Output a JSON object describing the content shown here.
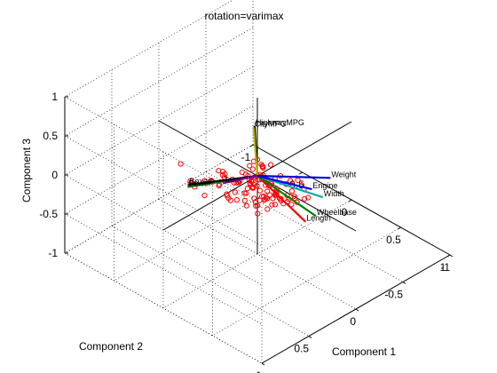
{
  "chart_data": {
    "type": "scatter",
    "title": "rotation=varimax",
    "xlabel": "Component 1",
    "ylabel": "Component 2",
    "zlabel": "Component 3",
    "xlim": [
      -1,
      1
    ],
    "ylim": [
      -1,
      1
    ],
    "zlim": [
      -1,
      1
    ],
    "xticks": [
      "-1",
      "-0.5",
      "0",
      "0.5",
      "1"
    ],
    "yticks": [
      "-1",
      "-0.5",
      "0",
      "0.5",
      "1"
    ],
    "zticks": [
      "-1",
      "-0.5",
      "0",
      "0.5",
      "1"
    ],
    "grid": true,
    "axis_lines_color": "#000000",
    "vectors": [
      {
        "label": "HighwayMPG",
        "coords": [
          0.0,
          0.03,
          0.66
        ],
        "color": "#000000"
      },
      {
        "label": "CityMPG",
        "coords": [
          -0.02,
          0.02,
          0.62
        ],
        "color": "#b5b500"
      },
      {
        "label": "Power",
        "coords": [
          -0.26,
          0.47,
          0.0
        ],
        "color": "#008000"
      },
      {
        "label": "Boxed",
        "coords": [
          -0.26,
          0.46,
          0.02
        ],
        "color": "#000000"
      },
      {
        "label": "Tons",
        "coords": [
          -0.14,
          0.22,
          -0.04
        ],
        "color": "#8000a0"
      },
      {
        "label": "Length",
        "coords": [
          0.68,
          0.2,
          0.03
        ],
        "color": "#ff0000"
      },
      {
        "label": "Wheelbase",
        "coords": [
          0.66,
          0.07,
          0.0
        ],
        "color": "#008000"
      },
      {
        "label": "Width",
        "coords": [
          0.55,
          -0.12,
          0.03
        ],
        "color": "#00aaaa"
      },
      {
        "label": "Engine",
        "coords": [
          0.4,
          -0.16,
          -0.0
        ],
        "color": "#0000ff"
      },
      {
        "label": "Weight",
        "coords": [
          0.36,
          -0.4,
          -0.05
        ],
        "color": "#0000cc"
      }
    ],
    "point_color": "#ff0000",
    "points": [
      [
        -0.32,
        0.48,
        0.26
      ],
      [
        -0.3,
        0.4,
        0.0
      ],
      [
        -0.28,
        0.42,
        -0.02
      ],
      [
        -0.3,
        0.34,
        -0.08
      ],
      [
        -0.35,
        0.3,
        -0.18
      ],
      [
        -0.25,
        0.3,
        -0.22
      ],
      [
        -0.2,
        0.35,
        0.04
      ],
      [
        -0.18,
        0.3,
        0.02
      ],
      [
        -0.22,
        0.25,
        -0.06
      ],
      [
        -0.28,
        0.2,
        -0.12
      ],
      [
        -0.12,
        0.2,
        -0.18
      ],
      [
        -0.1,
        0.18,
        -0.26
      ],
      [
        -0.16,
        0.14,
        -0.3
      ],
      [
        -0.08,
        0.05,
        -0.34
      ],
      [
        0.0,
        0.0,
        -0.38
      ],
      [
        0.04,
        -0.04,
        -0.3
      ],
      [
        -0.05,
        -0.08,
        -0.28
      ],
      [
        0.06,
        0.06,
        -0.4
      ],
      [
        0.1,
        0.0,
        -0.22
      ],
      [
        0.12,
        0.1,
        -0.16
      ],
      [
        0.14,
        -0.06,
        -0.14
      ],
      [
        0.2,
        0.02,
        -0.08
      ],
      [
        0.22,
        0.1,
        -0.02
      ],
      [
        0.25,
        0.06,
        0.0
      ],
      [
        0.3,
        0.12,
        0.04
      ],
      [
        0.35,
        0.05,
        0.03
      ],
      [
        0.18,
        -0.12,
        -0.06
      ],
      [
        0.22,
        -0.2,
        -0.04
      ],
      [
        0.28,
        -0.08,
        0.02
      ],
      [
        0.32,
        -0.16,
        -0.06
      ],
      [
        0.08,
        0.16,
        0.06
      ],
      [
        0.02,
        0.22,
        0.08
      ],
      [
        -0.04,
        0.12,
        0.1
      ],
      [
        0.0,
        0.05,
        0.12
      ],
      [
        0.05,
        0.0,
        0.16
      ],
      [
        -0.02,
        -0.02,
        0.18
      ],
      [
        0.1,
        0.05,
        0.06
      ],
      [
        0.06,
        0.1,
        0.0
      ],
      [
        -0.06,
        0.06,
        0.02
      ],
      [
        0.0,
        0.0,
        0.0
      ],
      [
        0.02,
        0.02,
        -0.02
      ],
      [
        -0.03,
        0.0,
        -0.04
      ],
      [
        0.04,
        -0.02,
        0.02
      ],
      [
        -0.02,
        0.04,
        -0.06
      ],
      [
        0.08,
        -0.02,
        -0.04
      ],
      [
        0.03,
        0.08,
        -0.08
      ],
      [
        -0.08,
        0.0,
        -0.1
      ],
      [
        0.12,
        0.02,
        -0.1
      ],
      [
        0.06,
        -0.08,
        -0.1
      ],
      [
        -0.04,
        -0.06,
        -0.12
      ],
      [
        0.1,
        0.14,
        -0.12
      ],
      [
        0.0,
        0.12,
        -0.14
      ],
      [
        -0.1,
        0.1,
        -0.08
      ],
      [
        0.14,
        0.06,
        0.02
      ],
      [
        0.16,
        -0.02,
        0.06
      ],
      [
        0.08,
        0.04,
        0.08
      ],
      [
        -0.02,
        0.08,
        0.04
      ],
      [
        0.04,
        0.12,
        0.02
      ],
      [
        0.02,
        -0.1,
        -0.18
      ],
      [
        0.08,
        -0.12,
        -0.2
      ],
      [
        -0.06,
        -0.02,
        -0.2
      ],
      [
        0.1,
        -0.06,
        -0.26
      ],
      [
        0.18,
        0.14,
        -0.04
      ],
      [
        0.24,
        0.16,
        0.0
      ],
      [
        0.2,
        -0.04,
        -0.18
      ],
      [
        0.26,
        0.02,
        -0.12
      ],
      [
        -0.14,
        0.04,
        -0.14
      ],
      [
        -0.1,
        -0.04,
        -0.16
      ],
      [
        -0.14,
        0.12,
        -0.06
      ],
      [
        -0.06,
        0.16,
        -0.02
      ],
      [
        0.12,
        0.18,
        0.06
      ],
      [
        0.06,
        0.2,
        -0.04
      ],
      [
        0.16,
        0.1,
        -0.08
      ],
      [
        0.2,
        0.06,
        0.08
      ],
      [
        0.3,
        -0.02,
        -0.1
      ],
      [
        0.34,
        0.08,
        -0.06
      ],
      [
        0.38,
        0.0,
        -0.02
      ],
      [
        0.26,
        -0.12,
        -0.16
      ],
      [
        0.0,
        -0.06,
        0.06
      ],
      [
        0.04,
        -0.1,
        0.1
      ],
      [
        -0.04,
        -0.1,
        0.02
      ],
      [
        0.12,
        -0.12,
        0.0
      ],
      [
        0.06,
        0.02,
        0.2
      ],
      [
        0.1,
        0.08,
        0.14
      ],
      [
        -0.06,
        0.02,
        0.1
      ],
      [
        0.02,
        0.06,
        0.24
      ],
      [
        0.14,
        -0.16,
        -0.12
      ],
      [
        0.2,
        -0.14,
        -0.02
      ],
      [
        0.24,
        -0.22,
        -0.1
      ],
      [
        0.16,
        -0.2,
        -0.22
      ],
      [
        -0.16,
        0.2,
        0.08
      ],
      [
        -0.1,
        0.24,
        0.12
      ],
      [
        -0.2,
        0.16,
        -0.02
      ],
      [
        -0.12,
        0.28,
        0.0
      ],
      [
        0.04,
        0.26,
        -0.1
      ],
      [
        0.1,
        0.22,
        -0.16
      ],
      [
        -0.02,
        0.3,
        -0.06
      ],
      [
        0.06,
        0.3,
        0.04
      ],
      [
        0.28,
        0.22,
        0.04
      ],
      [
        0.32,
        0.18,
        -0.02
      ],
      [
        0.4,
        0.1,
        0.02
      ],
      [
        0.36,
        0.14,
        0.06
      ],
      [
        -0.08,
        -0.08,
        -0.24
      ],
      [
        0.0,
        -0.14,
        -0.22
      ],
      [
        -0.12,
        -0.02,
        -0.26
      ],
      [
        0.04,
        -0.16,
        -0.32
      ],
      [
        0.14,
        0.04,
        -0.3
      ],
      [
        0.08,
        0.1,
        -0.26
      ],
      [
        0.18,
        0.0,
        -0.24
      ],
      [
        0.02,
        0.04,
        -0.3
      ],
      [
        0.44,
        0.04,
        0.0
      ],
      [
        0.42,
        -0.06,
        -0.04
      ],
      [
        0.46,
        0.12,
        0.04
      ],
      [
        0.4,
        -0.12,
        -0.08
      ],
      [
        -0.24,
        0.1,
        -0.12
      ],
      [
        -0.2,
        0.04,
        -0.2
      ],
      [
        -0.26,
        0.14,
        -0.02
      ],
      [
        -0.18,
        0.22,
        -0.1
      ]
    ]
  }
}
